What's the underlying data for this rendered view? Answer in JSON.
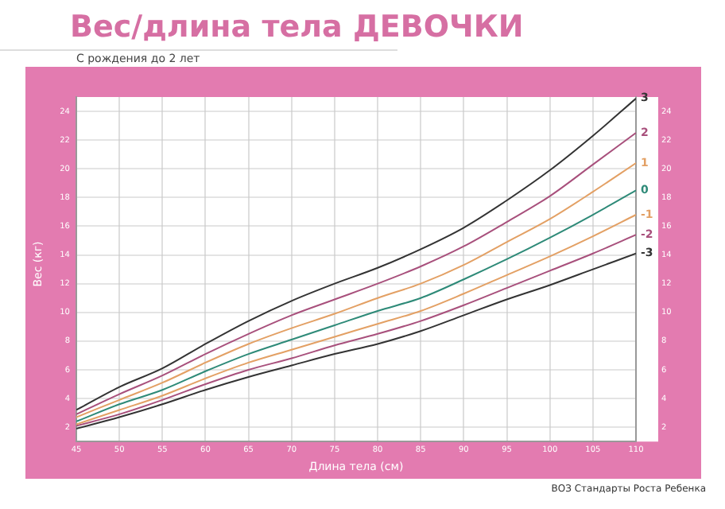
{
  "chart_data": {
    "type": "line",
    "title": "Вес/длина тела ДЕВОЧКИ",
    "subtitle": "С рождения до 2 лет",
    "xlabel": "Длина тела (см)",
    "ylabel": "Вес (кг)",
    "annotations": [
      "ВОЗ Стандарты Роста Ребенка"
    ],
    "x": [
      45,
      50,
      55,
      60,
      65,
      70,
      75,
      80,
      85,
      90,
      95,
      100,
      105,
      110
    ],
    "series": [
      {
        "name": "3",
        "color": "#333333",
        "values": [
          3.2,
          4.8,
          6.1,
          7.8,
          9.4,
          10.8,
          12.0,
          13.1,
          14.4,
          15.9,
          17.8,
          19.9,
          22.3,
          24.9
        ]
      },
      {
        "name": "2",
        "color": "#a8507c",
        "values": [
          2.9,
          4.3,
          5.6,
          7.1,
          8.5,
          9.8,
          10.9,
          12.0,
          13.2,
          14.6,
          16.3,
          18.1,
          20.3,
          22.5
        ]
      },
      {
        "name": "1",
        "color": "#e3a064",
        "values": [
          2.7,
          3.9,
          5.1,
          6.5,
          7.8,
          8.9,
          9.9,
          11.0,
          12.0,
          13.3,
          14.9,
          16.5,
          18.4,
          20.4
        ]
      },
      {
        "name": "0",
        "color": "#2e8a78",
        "values": [
          2.4,
          3.6,
          4.6,
          5.9,
          7.1,
          8.1,
          9.1,
          10.1,
          11.0,
          12.3,
          13.7,
          15.2,
          16.8,
          18.5
        ]
      },
      {
        "name": "-1",
        "color": "#e3a064",
        "values": [
          2.2,
          3.2,
          4.2,
          5.4,
          6.5,
          7.4,
          8.3,
          9.2,
          10.1,
          11.3,
          12.6,
          13.9,
          15.3,
          16.8
        ]
      },
      {
        "name": "-2",
        "color": "#a8507c",
        "values": [
          2.1,
          2.9,
          3.9,
          5.0,
          6.0,
          6.8,
          7.7,
          8.5,
          9.4,
          10.5,
          11.7,
          12.9,
          14.1,
          15.4
        ]
      },
      {
        "name": "-3",
        "color": "#333333",
        "values": [
          1.9,
          2.7,
          3.6,
          4.6,
          5.5,
          6.3,
          7.1,
          7.8,
          8.7,
          9.8,
          10.9,
          11.9,
          13.0,
          14.1
        ]
      }
    ],
    "xlim": [
      45,
      110
    ],
    "xticks": [
      45,
      50,
      55,
      60,
      65,
      70,
      75,
      80,
      85,
      90,
      95,
      100,
      105,
      110
    ],
    "ylim": [
      1,
      25
    ],
    "yticks": [
      2,
      4,
      6,
      8,
      10,
      12,
      14,
      16,
      18,
      20,
      22,
      24
    ],
    "y2lim": [
      1,
      25
    ],
    "y2ticks": [
      2,
      4,
      6,
      8,
      10,
      12,
      14,
      16,
      18,
      20,
      22,
      24
    ],
    "grid": true,
    "legend": false,
    "marker": "none",
    "line_style": "solid"
  }
}
